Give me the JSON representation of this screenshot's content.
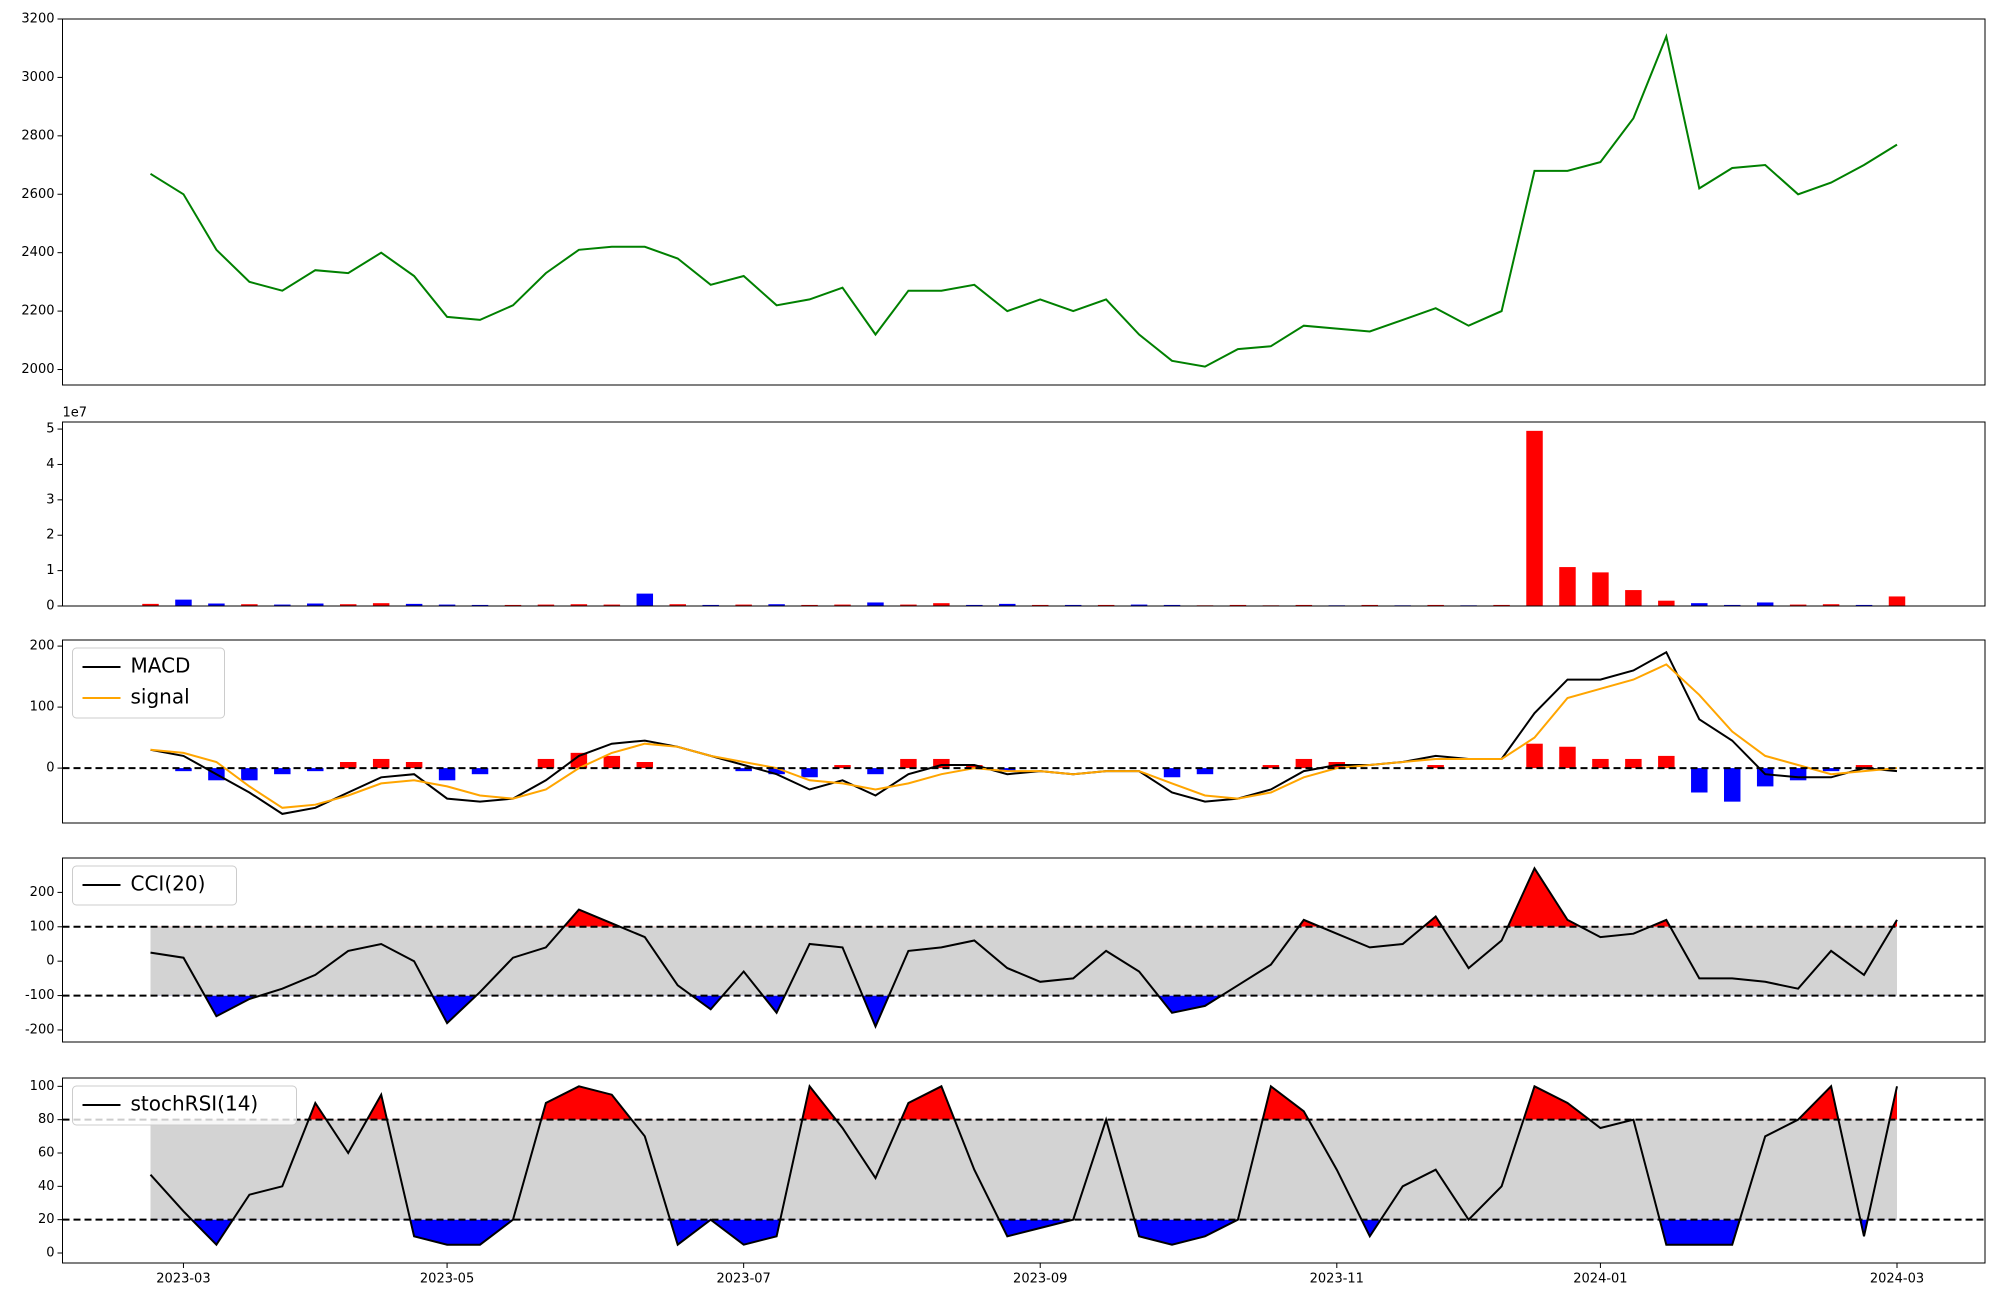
{
  "chart_data": [
    {
      "type": "line",
      "color": "green",
      "values": [
        2670,
        2600,
        2410,
        2300,
        2270,
        2340,
        2330,
        2400,
        2320,
        2180,
        2170,
        2220,
        2330,
        2410,
        2420,
        2420,
        2380,
        2290,
        2320,
        2220,
        2240,
        2280,
        2120,
        2270,
        2270,
        2290,
        2200,
        2240,
        2200,
        2240,
        2120,
        2030,
        2010,
        2070,
        2080,
        2150,
        2140,
        2130,
        2170,
        2210,
        2150,
        2200,
        2680,
        2680,
        2710,
        2860,
        3140,
        2620,
        2690,
        2700,
        2600,
        2640,
        2700,
        2770
      ],
      "ylim": [
        1947,
        3200
      ],
      "yticks": [
        2000,
        2200,
        2400,
        2600,
        2800,
        3000,
        3200
      ]
    },
    {
      "type": "bar",
      "offset_label": "1e7",
      "values": [
        600000,
        1800000,
        700000,
        500000,
        400000,
        700000,
        500000,
        800000,
        600000,
        400000,
        300000,
        300000,
        400000,
        500000,
        400000,
        3500000,
        500000,
        300000,
        400000,
        500000,
        300000,
        400000,
        1000000,
        400000,
        800000,
        300000,
        600000,
        300000,
        300000,
        300000,
        400000,
        300000,
        200000,
        300000,
        200000,
        300000,
        200000,
        300000,
        200000,
        300000,
        200000,
        300000,
        49500000,
        11000000,
        9500000,
        4500000,
        1500000,
        800000,
        300000,
        1000000,
        400000,
        500000,
        300000,
        2700000
      ],
      "bar_colors": [
        "red",
        "blue",
        "blue",
        "red",
        "blue",
        "blue",
        "red",
        "red",
        "blue",
        "blue",
        "blue",
        "red",
        "red",
        "red",
        "red",
        "blue",
        "red",
        "blue",
        "red",
        "blue",
        "red",
        "red",
        "blue",
        "red",
        "red",
        "blue",
        "blue",
        "red",
        "blue",
        "red",
        "blue",
        "blue",
        "red",
        "red",
        "red",
        "red",
        "blue",
        "red",
        "blue",
        "red",
        "blue",
        "red",
        "red",
        "red",
        "red",
        "red",
        "red",
        "blue",
        "blue",
        "blue",
        "red",
        "red",
        "blue",
        "red"
      ],
      "ylim": [
        0,
        52000000
      ],
      "yticks": [
        {
          "value": 0,
          "label": "0"
        },
        {
          "value": 10000000,
          "label": "1"
        },
        {
          "value": 20000000,
          "label": "2"
        },
        {
          "value": 30000000,
          "label": "3"
        },
        {
          "value": 40000000,
          "label": "4"
        },
        {
          "value": 50000000,
          "label": "5"
        }
      ]
    },
    {
      "type": "macd",
      "legend": "upper left",
      "hlines": [
        0
      ],
      "series": [
        {
          "name": "MACD",
          "color": "black",
          "values": [
            30,
            20,
            -10,
            -40,
            -75,
            -65,
            -40,
            -15,
            -10,
            -50,
            -55,
            -50,
            -20,
            20,
            40,
            45,
            35,
            20,
            5,
            -10,
            -35,
            -20,
            -45,
            -10,
            5,
            5,
            -10,
            -5,
            -10,
            -5,
            -5,
            -40,
            -55,
            -50,
            -35,
            -5,
            5,
            5,
            10,
            20,
            15,
            15,
            90,
            145,
            145,
            160,
            190,
            80,
            45,
            -10,
            -15,
            -15,
            0,
            -5
          ]
        },
        {
          "name": "signal",
          "color": "orange",
          "values": [
            30,
            25,
            10,
            -30,
            -65,
            -60,
            -45,
            -25,
            -20,
            -30,
            -45,
            -50,
            -35,
            0,
            25,
            40,
            35,
            20,
            10,
            0,
            -20,
            -25,
            -35,
            -25,
            -10,
            0,
            -5,
            -5,
            -10,
            -5,
            -5,
            -25,
            -45,
            -50,
            -40,
            -15,
            0,
            5,
            10,
            15,
            15,
            15,
            50,
            115,
            130,
            145,
            170,
            120,
            60,
            20,
            5,
            -10,
            -5,
            0
          ]
        }
      ],
      "histogram": {
        "pos_color": "red",
        "neg_color": "blue",
        "values": [
          0,
          -5,
          -20,
          -20,
          -10,
          -5,
          10,
          15,
          10,
          -20,
          -10,
          0,
          15,
          25,
          20,
          10,
          0,
          0,
          -5,
          -10,
          -15,
          5,
          -10,
          15,
          15,
          5,
          -5,
          0,
          0,
          0,
          0,
          -15,
          -10,
          0,
          5,
          15,
          10,
          0,
          0,
          5,
          0,
          0,
          40,
          35,
          15,
          15,
          20,
          -40,
          -55,
          -30,
          -20,
          -5,
          5,
          0
        ]
      },
      "ylim": [
        -90,
        210
      ],
      "yticks": [
        0,
        100,
        200
      ]
    },
    {
      "type": "oscillator",
      "legend": "upper left",
      "bands": [
        -100,
        100
      ],
      "band_color": "lightgray",
      "upper_color": "red",
      "lower_color": "blue",
      "series": [
        {
          "name": "CCI(20)",
          "color": "black",
          "values": [
            25,
            10,
            -160,
            -110,
            -80,
            -40,
            30,
            50,
            0,
            -180,
            -90,
            10,
            40,
            150,
            110,
            70,
            -70,
            -140,
            -30,
            -150,
            50,
            40,
            -190,
            30,
            40,
            60,
            -20,
            -60,
            -50,
            30,
            -30,
            -150,
            -130,
            -70,
            -10,
            120,
            80,
            40,
            50,
            130,
            -20,
            60,
            270,
            120,
            70,
            80,
            120,
            -50,
            -50,
            -60,
            -80,
            30,
            -40,
            120
          ]
        }
      ],
      "ylim": [
        -235,
        300
      ],
      "yticks": [
        -200,
        -100,
        0,
        100,
        200
      ]
    },
    {
      "type": "oscillator",
      "legend": "upper left",
      "bands": [
        20,
        80
      ],
      "band_color": "lightgray",
      "upper_color": "red",
      "lower_color": "blue",
      "series": [
        {
          "name": "stochRSI(14)",
          "color": "black",
          "values": [
            47,
            25,
            5,
            35,
            40,
            90,
            60,
            95,
            10,
            5,
            5,
            20,
            90,
            100,
            95,
            70,
            5,
            20,
            5,
            10,
            100,
            75,
            45,
            90,
            100,
            50,
            10,
            15,
            20,
            80,
            10,
            5,
            10,
            20,
            100,
            85,
            50,
            10,
            40,
            50,
            20,
            40,
            100,
            90,
            75,
            80,
            5,
            5,
            5,
            70,
            80,
            100,
            10,
            100
          ]
        }
      ],
      "categories": [
        null,
        "2023-03",
        null,
        null,
        null,
        null,
        null,
        null,
        null,
        "2023-05",
        null,
        null,
        null,
        null,
        null,
        null,
        null,
        null,
        "2023-07",
        null,
        null,
        null,
        null,
        null,
        null,
        null,
        null,
        "2023-09",
        null,
        null,
        null,
        null,
        null,
        null,
        null,
        null,
        "2023-11",
        null,
        null,
        null,
        null,
        null,
        null,
        null,
        "2024-01",
        null,
        null,
        null,
        null,
        null,
        null,
        null,
        null,
        "2024-03"
      ],
      "ylim": [
        -6,
        105
      ],
      "yticks": [
        0,
        20,
        40,
        60,
        80,
        100
      ]
    }
  ]
}
